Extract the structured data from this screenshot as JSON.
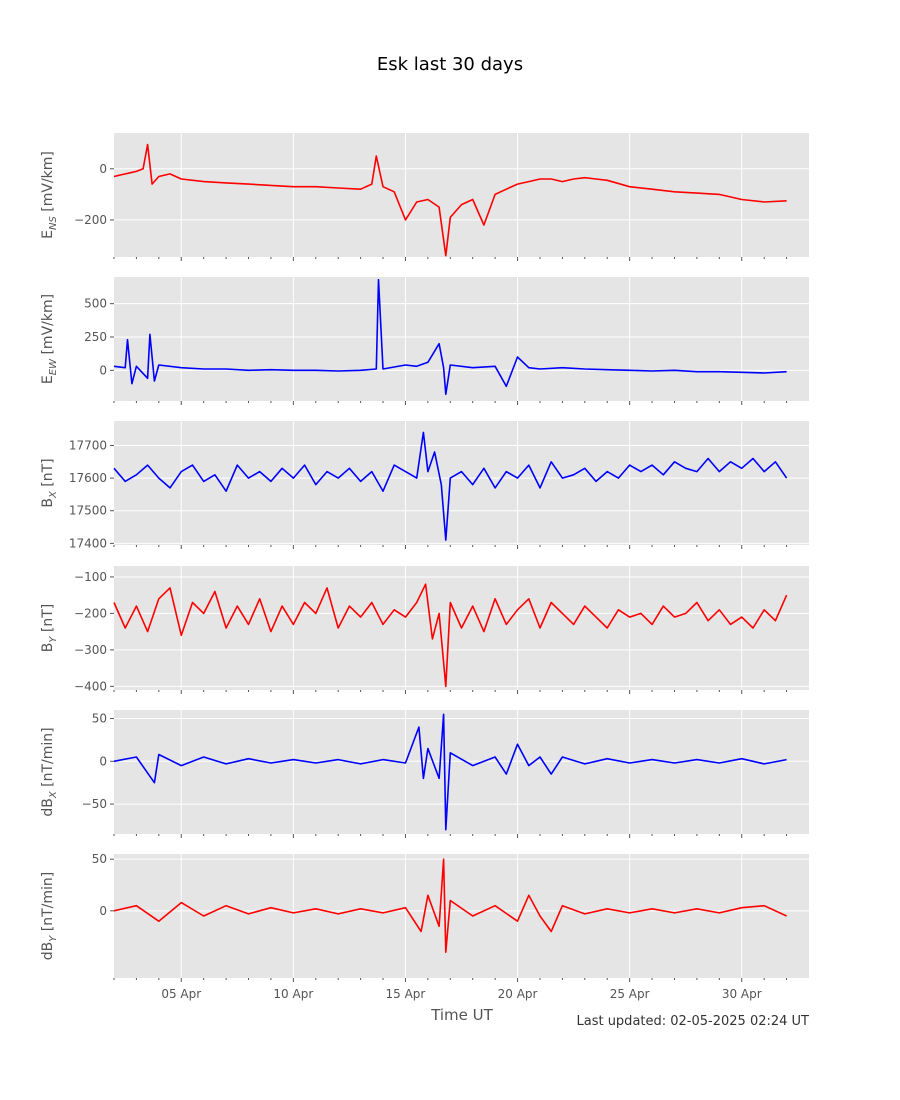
{
  "figure": {
    "title": "Esk last 30 days",
    "xlabel": "Time UT",
    "last_updated": "Last updated: 02-05-2025 02:24 UT"
  },
  "colors": {
    "panel_bg": "#e5e5e5",
    "grid": "#ffffff",
    "red": "#ff0000",
    "blue": "#0000ff",
    "text": "#555555"
  },
  "chart_data": [
    {
      "type": "line",
      "panel": "ens",
      "ylabel_main": "E",
      "ylabel_sub": "NS",
      "ylabel_unit": "[mV/km]",
      "color": "red",
      "ylim": [
        -345,
        140
      ],
      "yticks": [
        0,
        -200
      ],
      "ytick_labels": [
        "0",
        "−200"
      ],
      "xlim": [
        2.0,
        33.0
      ],
      "x_ticks": [
        5,
        10,
        15,
        20,
        25,
        30
      ],
      "x_ticks_minor": [
        2,
        3,
        4,
        6,
        7,
        8,
        9,
        11,
        12,
        13,
        14,
        16,
        17,
        18,
        19,
        21,
        22,
        23,
        24,
        26,
        27,
        28,
        29,
        31,
        32
      ],
      "x_tick_labels": [],
      "series": [
        {
          "x": [
            2.0,
            2.5,
            3.0,
            3.3,
            3.5,
            3.7,
            4.0,
            4.5,
            5.0,
            6.0,
            7.0,
            8.0,
            9.0,
            10.0,
            11.0,
            12.0,
            13.0,
            13.5,
            13.7,
            14.0,
            14.5,
            15.0,
            15.5,
            16.0,
            16.5,
            16.8,
            17.0,
            17.5,
            18.0,
            18.5,
            19.0,
            19.5,
            20.0,
            20.5,
            21.0,
            21.5,
            22.0,
            22.5,
            23.0,
            23.5,
            24.0,
            25.0,
            26.0,
            27.0,
            28.0,
            29.0,
            30.0,
            31.0,
            32.0
          ],
          "y": [
            -30,
            -20,
            -10,
            0,
            95,
            -60,
            -30,
            -20,
            -40,
            -50,
            -55,
            -60,
            -65,
            -70,
            -70,
            -75,
            -80,
            -60,
            50,
            -70,
            -90,
            -200,
            -130,
            -120,
            -150,
            -340,
            -190,
            -140,
            -120,
            -220,
            -100,
            -80,
            -60,
            -50,
            -40,
            -40,
            -50,
            -40,
            -35,
            -40,
            -45,
            -70,
            -80,
            -90,
            -95,
            -100,
            -120,
            -130,
            -125
          ]
        }
      ]
    },
    {
      "type": "line",
      "panel": "eew",
      "ylabel_main": "E",
      "ylabel_sub": "EW",
      "ylabel_unit": "[mV/km]",
      "color": "blue",
      "ylim": [
        -230,
        700
      ],
      "yticks": [
        500,
        250,
        0
      ],
      "ytick_labels": [
        "500",
        "250",
        "0"
      ],
      "xlim": [
        2.0,
        33.0
      ],
      "x_ticks": [
        5,
        10,
        15,
        20,
        25,
        30
      ],
      "x_ticks_minor": [
        2,
        3,
        4,
        6,
        7,
        8,
        9,
        11,
        12,
        13,
        14,
        16,
        17,
        18,
        19,
        21,
        22,
        23,
        24,
        26,
        27,
        28,
        29,
        31,
        32
      ],
      "x_tick_labels": [],
      "series": [
        {
          "x": [
            2.0,
            2.5,
            2.6,
            2.8,
            3.0,
            3.5,
            3.6,
            3.8,
            4.0,
            5.0,
            6.0,
            7.0,
            8.0,
            9.0,
            10.0,
            11.0,
            12.0,
            13.0,
            13.7,
            13.8,
            14.0,
            15.0,
            15.5,
            16.0,
            16.5,
            16.7,
            16.8,
            17.0,
            18.0,
            19.0,
            19.5,
            20.0,
            20.5,
            21.0,
            22.0,
            23.0,
            24.0,
            25.0,
            26.0,
            27.0,
            28.0,
            29.0,
            30.0,
            31.0,
            32.0
          ],
          "y": [
            30,
            20,
            230,
            -100,
            30,
            -60,
            270,
            -80,
            40,
            20,
            10,
            10,
            0,
            5,
            0,
            0,
            -5,
            0,
            10,
            680,
            10,
            40,
            30,
            60,
            200,
            20,
            -180,
            40,
            20,
            30,
            -120,
            100,
            20,
            10,
            20,
            10,
            5,
            0,
            -5,
            0,
            -10,
            -10,
            -15,
            -20,
            -10
          ]
        }
      ]
    },
    {
      "type": "line",
      "panel": "bx",
      "ylabel_main": "B",
      "ylabel_sub": "X",
      "ylabel_unit": "[nT]",
      "color": "blue",
      "ylim": [
        17395,
        17775
      ],
      "yticks": [
        17700,
        17600,
        17500,
        17400
      ],
      "ytick_labels": [
        "17700",
        "17600",
        "17500",
        "17400"
      ],
      "xlim": [
        2.0,
        33.0
      ],
      "x_ticks": [
        5,
        10,
        15,
        20,
        25,
        30
      ],
      "x_ticks_minor": [
        2,
        3,
        4,
        6,
        7,
        8,
        9,
        11,
        12,
        13,
        14,
        16,
        17,
        18,
        19,
        21,
        22,
        23,
        24,
        26,
        27,
        28,
        29,
        31,
        32
      ],
      "x_tick_labels": [],
      "series": [
        {
          "x": [
            2.0,
            2.5,
            3.0,
            3.5,
            4.0,
            4.5,
            5.0,
            5.5,
            6.0,
            6.5,
            7.0,
            7.5,
            8.0,
            8.5,
            9.0,
            9.5,
            10.0,
            10.5,
            11.0,
            11.5,
            12.0,
            12.5,
            13.0,
            13.5,
            14.0,
            14.5,
            15.0,
            15.5,
            15.8,
            16.0,
            16.3,
            16.6,
            16.8,
            17.0,
            17.5,
            18.0,
            18.5,
            19.0,
            19.5,
            20.0,
            20.5,
            21.0,
            21.5,
            22.0,
            22.5,
            23.0,
            23.5,
            24.0,
            24.5,
            25.0,
            25.5,
            26.0,
            26.5,
            27.0,
            27.5,
            28.0,
            28.5,
            29.0,
            29.5,
            30.0,
            30.5,
            31.0,
            31.5,
            32.0
          ],
          "y": [
            17630,
            17590,
            17610,
            17640,
            17600,
            17570,
            17620,
            17640,
            17590,
            17610,
            17560,
            17640,
            17600,
            17620,
            17590,
            17630,
            17600,
            17640,
            17580,
            17620,
            17600,
            17630,
            17590,
            17620,
            17560,
            17640,
            17620,
            17600,
            17740,
            17620,
            17680,
            17580,
            17410,
            17600,
            17620,
            17580,
            17630,
            17570,
            17620,
            17600,
            17640,
            17570,
            17650,
            17600,
            17610,
            17630,
            17590,
            17620,
            17600,
            17640,
            17620,
            17640,
            17610,
            17650,
            17630,
            17620,
            17660,
            17620,
            17650,
            17630,
            17660,
            17620,
            17650,
            17600
          ]
        }
      ]
    },
    {
      "type": "line",
      "panel": "by",
      "ylabel_main": "B",
      "ylabel_sub": "Y",
      "ylabel_unit": "[nT]",
      "color": "red",
      "ylim": [
        -410,
        -70
      ],
      "yticks": [
        -100,
        -200,
        -300,
        -400
      ],
      "ytick_labels": [
        "−100",
        "−200",
        "−300",
        "−400"
      ],
      "xlim": [
        2.0,
        33.0
      ],
      "x_ticks": [
        5,
        10,
        15,
        20,
        25,
        30
      ],
      "x_ticks_minor": [
        2,
        3,
        4,
        6,
        7,
        8,
        9,
        11,
        12,
        13,
        14,
        16,
        17,
        18,
        19,
        21,
        22,
        23,
        24,
        26,
        27,
        28,
        29,
        31,
        32
      ],
      "x_tick_labels": [],
      "series": [
        {
          "x": [
            2.0,
            2.5,
            3.0,
            3.5,
            4.0,
            4.5,
            5.0,
            5.5,
            6.0,
            6.5,
            7.0,
            7.5,
            8.0,
            8.5,
            9.0,
            9.5,
            10.0,
            10.5,
            11.0,
            11.5,
            12.0,
            12.5,
            13.0,
            13.5,
            14.0,
            14.5,
            15.0,
            15.5,
            15.9,
            16.2,
            16.5,
            16.8,
            17.0,
            17.5,
            18.0,
            18.5,
            19.0,
            19.5,
            20.0,
            20.5,
            21.0,
            21.5,
            22.0,
            22.5,
            23.0,
            23.5,
            24.0,
            24.5,
            25.0,
            25.5,
            26.0,
            26.5,
            27.0,
            27.5,
            28.0,
            28.5,
            29.0,
            29.5,
            30.0,
            30.5,
            31.0,
            31.5,
            32.0
          ],
          "y": [
            -170,
            -240,
            -180,
            -250,
            -160,
            -130,
            -260,
            -170,
            -200,
            -140,
            -240,
            -180,
            -230,
            -160,
            -250,
            -180,
            -230,
            -170,
            -200,
            -130,
            -240,
            -180,
            -210,
            -170,
            -230,
            -190,
            -210,
            -170,
            -120,
            -270,
            -200,
            -400,
            -170,
            -240,
            -180,
            -250,
            -160,
            -230,
            -190,
            -160,
            -240,
            -170,
            -200,
            -230,
            -180,
            -210,
            -240,
            -190,
            -210,
            -200,
            -230,
            -180,
            -210,
            -200,
            -170,
            -220,
            -190,
            -230,
            -210,
            -240,
            -190,
            -220,
            -150
          ]
        }
      ]
    },
    {
      "type": "line",
      "panel": "dbx",
      "ylabel_main": "dB",
      "ylabel_sub": "X",
      "ylabel_unit": "[nT/min]",
      "color": "blue",
      "ylim": [
        -85,
        60
      ],
      "yticks": [
        50,
        0,
        -50
      ],
      "ytick_labels": [
        "50",
        "0",
        "−50"
      ],
      "xlim": [
        2.0,
        33.0
      ],
      "x_ticks": [
        5,
        10,
        15,
        20,
        25,
        30
      ],
      "x_ticks_minor": [
        2,
        3,
        4,
        6,
        7,
        8,
        9,
        11,
        12,
        13,
        14,
        16,
        17,
        18,
        19,
        21,
        22,
        23,
        24,
        26,
        27,
        28,
        29,
        31,
        32
      ],
      "x_tick_labels": [],
      "series": [
        {
          "x": [
            2.0,
            3.0,
            3.8,
            4.0,
            5.0,
            6.0,
            7.0,
            8.0,
            9.0,
            10.0,
            11.0,
            12.0,
            13.0,
            14.0,
            15.0,
            15.6,
            15.8,
            16.0,
            16.5,
            16.7,
            16.8,
            17.0,
            18.0,
            19.0,
            19.5,
            20.0,
            20.5,
            21.0,
            21.5,
            22.0,
            23.0,
            24.0,
            25.0,
            26.0,
            27.0,
            28.0,
            29.0,
            30.0,
            31.0,
            32.0
          ],
          "y": [
            0,
            5,
            -25,
            8,
            -5,
            5,
            -3,
            3,
            -2,
            2,
            -2,
            2,
            -3,
            2,
            -2,
            40,
            -20,
            15,
            -20,
            55,
            -80,
            10,
            -5,
            5,
            -15,
            20,
            -5,
            5,
            -15,
            5,
            -3,
            3,
            -2,
            2,
            -2,
            2,
            -2,
            3,
            -3,
            2
          ]
        }
      ]
    },
    {
      "type": "line",
      "panel": "dby",
      "ylabel_main": "dB",
      "ylabel_sub": "Y",
      "ylabel_unit": "[nT/min]",
      "color": "red",
      "ylim": [
        -65,
        55
      ],
      "yticks": [
        50,
        0
      ],
      "ytick_labels": [
        "50",
        "0"
      ],
      "xlim": [
        2.0,
        33.0
      ],
      "x_ticks": [
        5,
        10,
        15,
        20,
        25,
        30
      ],
      "x_ticks_minor": [
        2,
        3,
        4,
        6,
        7,
        8,
        9,
        11,
        12,
        13,
        14,
        16,
        17,
        18,
        19,
        21,
        22,
        23,
        24,
        26,
        27,
        28,
        29,
        31,
        32
      ],
      "x_tick_labels": [
        "05 Apr",
        "10 Apr",
        "15 Apr",
        "20 Apr",
        "25 Apr",
        "30 Apr"
      ],
      "series": [
        {
          "x": [
            2.0,
            3.0,
            4.0,
            5.0,
            6.0,
            7.0,
            8.0,
            9.0,
            10.0,
            11.0,
            12.0,
            13.0,
            14.0,
            15.0,
            15.7,
            16.0,
            16.5,
            16.7,
            16.8,
            17.0,
            18.0,
            19.0,
            20.0,
            20.5,
            21.0,
            21.5,
            22.0,
            23.0,
            24.0,
            25.0,
            26.0,
            27.0,
            28.0,
            29.0,
            30.0,
            31.0,
            32.0
          ],
          "y": [
            0,
            5,
            -10,
            8,
            -5,
            5,
            -3,
            3,
            -2,
            2,
            -3,
            2,
            -2,
            3,
            -20,
            15,
            -15,
            50,
            -40,
            10,
            -5,
            5,
            -10,
            15,
            -5,
            -20,
            5,
            -3,
            2,
            -2,
            2,
            -2,
            2,
            -2,
            3,
            5,
            -5
          ]
        }
      ]
    }
  ]
}
